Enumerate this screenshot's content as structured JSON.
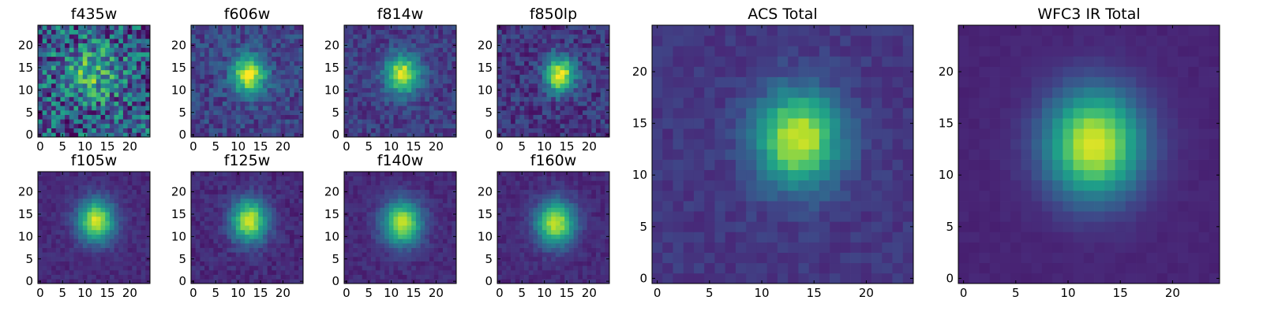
{
  "figure": {
    "colormap": "viridis",
    "colormap_stops": [
      "#440154",
      "#482878",
      "#3e4989",
      "#31688e",
      "#26828e",
      "#1f9e89",
      "#35b779",
      "#6ece58",
      "#b5de2b",
      "#fde725"
    ],
    "background": "#ffffff"
  },
  "chart_data": [
    {
      "type": "heatmap",
      "title": "f435w",
      "grid": 25,
      "center": [
        11.5,
        13.5
      ],
      "sigma": [
        4.5,
        4.5
      ],
      "peak": 0.35,
      "base": 0.28,
      "noise": 0.32,
      "seed": 7,
      "xticks": [
        0,
        5,
        10,
        15,
        20
      ],
      "yticks": [
        0,
        5,
        10,
        15,
        20
      ],
      "xlim": [
        0,
        25
      ],
      "ylim": [
        0,
        25
      ]
    },
    {
      "type": "heatmap",
      "title": "f606w",
      "grid": 25,
      "center": [
        12.5,
        13.5
      ],
      "sigma": [
        2.6,
        3.0
      ],
      "peak": 0.78,
      "base": 0.2,
      "noise": 0.12,
      "seed": 11,
      "xticks": [
        0,
        5,
        10,
        15,
        20
      ],
      "yticks": [
        0,
        5,
        10,
        15,
        20
      ],
      "xlim": [
        0,
        25
      ],
      "ylim": [
        0,
        25
      ]
    },
    {
      "type": "heatmap",
      "title": "f814w",
      "grid": 25,
      "center": [
        12.5,
        13.5
      ],
      "sigma": [
        2.6,
        3.0
      ],
      "peak": 0.78,
      "base": 0.18,
      "noise": 0.1,
      "seed": 13,
      "xticks": [
        0,
        5,
        10,
        15,
        20
      ],
      "yticks": [
        0,
        5,
        10,
        15,
        20
      ],
      "xlim": [
        0,
        25
      ],
      "ylim": [
        0,
        25
      ]
    },
    {
      "type": "heatmap",
      "title": "f850lp",
      "grid": 25,
      "center": [
        13.5,
        13.5
      ],
      "sigma": [
        2.3,
        2.8
      ],
      "peak": 0.82,
      "base": 0.16,
      "noise": 0.12,
      "seed": 17,
      "xticks": [
        0,
        5,
        10,
        15,
        20
      ],
      "yticks": [
        0,
        5,
        10,
        15,
        20
      ],
      "xlim": [
        0,
        25
      ],
      "ylim": [
        0,
        25
      ]
    },
    {
      "type": "heatmap",
      "title": "f105w",
      "grid": 25,
      "center": [
        12.5,
        13.5
      ],
      "sigma": [
        2.8,
        3.3
      ],
      "peak": 0.82,
      "base": 0.12,
      "noise": 0.05,
      "seed": 19,
      "xticks": [
        0,
        5,
        10,
        15,
        20
      ],
      "yticks": [
        0,
        5,
        10,
        15,
        20
      ],
      "xlim": [
        0,
        25
      ],
      "ylim": [
        0,
        25
      ]
    },
    {
      "type": "heatmap",
      "title": "f125w",
      "grid": 25,
      "center": [
        12.5,
        13.5
      ],
      "sigma": [
        2.8,
        3.3
      ],
      "peak": 0.82,
      "base": 0.12,
      "noise": 0.06,
      "seed": 23,
      "xticks": [
        0,
        5,
        10,
        15,
        20
      ],
      "yticks": [
        0,
        5,
        10,
        15,
        20
      ],
      "xlim": [
        0,
        25
      ],
      "ylim": [
        0,
        25
      ]
    },
    {
      "type": "heatmap",
      "title": "f140w",
      "grid": 25,
      "center": [
        12.5,
        13.0
      ],
      "sigma": [
        3.0,
        3.4
      ],
      "peak": 0.8,
      "base": 0.12,
      "noise": 0.05,
      "seed": 29,
      "xticks": [
        0,
        5,
        10,
        15,
        20
      ],
      "yticks": [
        0,
        5,
        10,
        15,
        20
      ],
      "xlim": [
        0,
        25
      ],
      "ylim": [
        0,
        25
      ]
    },
    {
      "type": "heatmap",
      "title": "f160w",
      "grid": 25,
      "center": [
        12.5,
        13.0
      ],
      "sigma": [
        3.0,
        3.4
      ],
      "peak": 0.8,
      "base": 0.12,
      "noise": 0.05,
      "seed": 31,
      "xticks": [
        0,
        5,
        10,
        15,
        20
      ],
      "yticks": [
        0,
        5,
        10,
        15,
        20
      ],
      "xlim": [
        0,
        25
      ],
      "ylim": [
        0,
        25
      ]
    },
    {
      "type": "heatmap",
      "title": "ACS Total",
      "grid": 25,
      "center": [
        13.5,
        13.5
      ],
      "sigma": [
        2.8,
        3.2
      ],
      "peak": 0.78,
      "base": 0.16,
      "noise": 0.05,
      "seed": 37,
      "xticks": [
        0,
        5,
        10,
        15,
        20
      ],
      "yticks": [
        0,
        5,
        10,
        15,
        20
      ],
      "xlim": [
        0,
        25
      ],
      "ylim": [
        0,
        25
      ]
    },
    {
      "type": "heatmap",
      "title": "WFC3 IR Total",
      "grid": 25,
      "center": [
        12.5,
        13.0
      ],
      "sigma": [
        3.2,
        3.6
      ],
      "peak": 0.86,
      "base": 0.1,
      "noise": 0.015,
      "seed": 41,
      "xticks": [
        0,
        5,
        10,
        15,
        20
      ],
      "yticks": [
        0,
        5,
        10,
        15,
        20
      ],
      "xlim": [
        0,
        25
      ],
      "ylim": [
        0,
        25
      ]
    }
  ]
}
